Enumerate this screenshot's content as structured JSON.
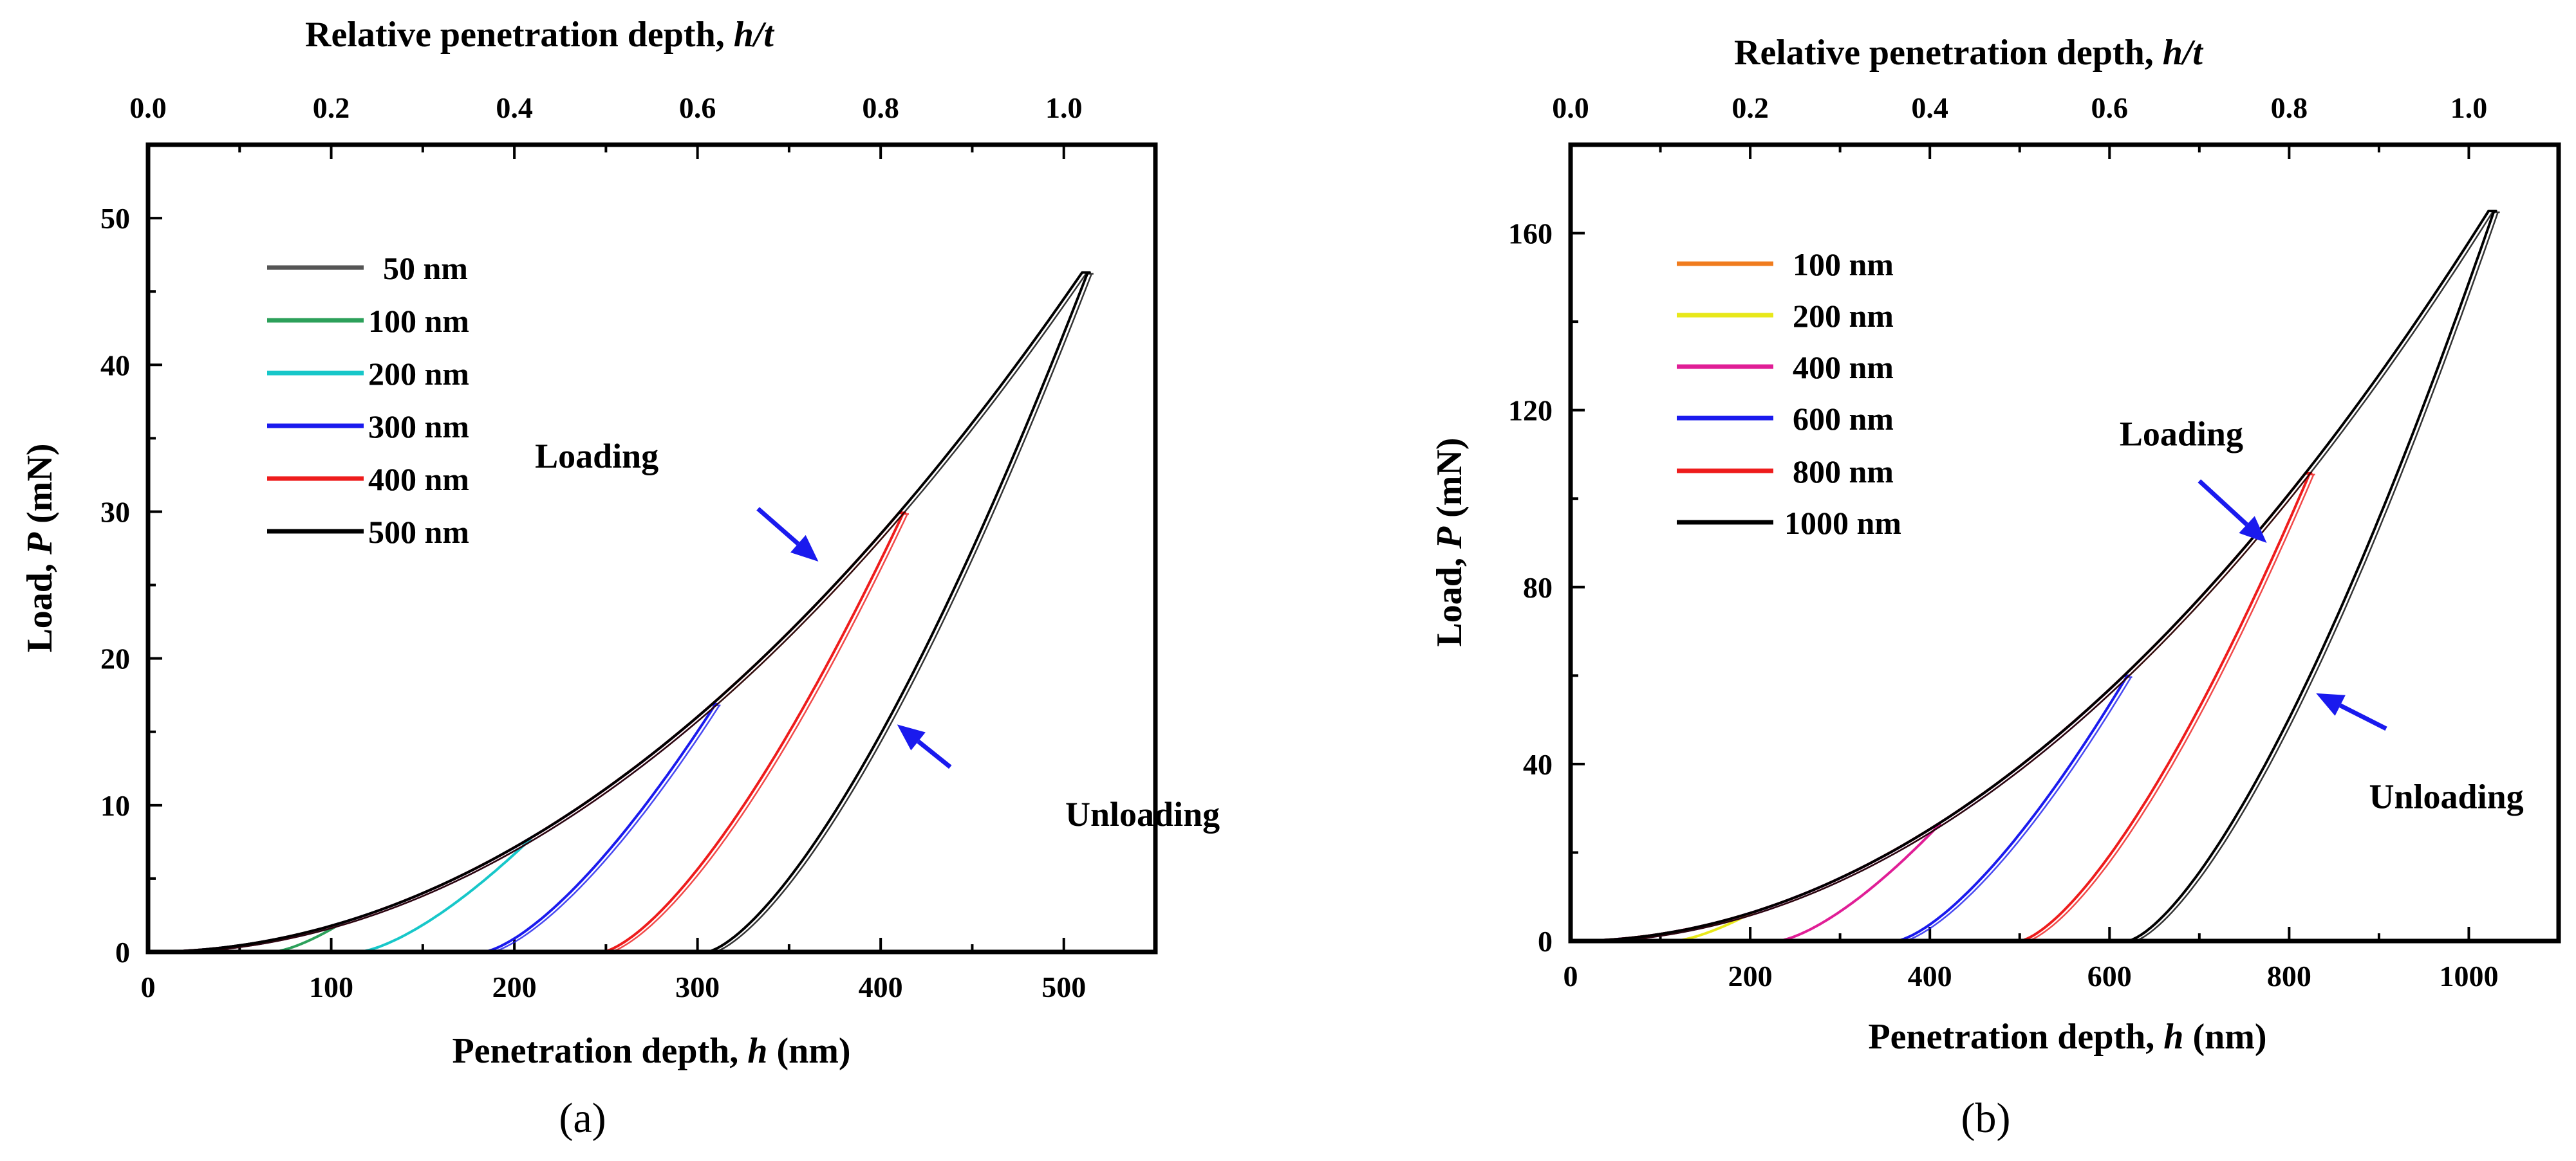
{
  "figure": {
    "panel_labels": [
      "(a)",
      "(b)"
    ]
  },
  "chart_data": [
    {
      "type": "line",
      "panel": "(a)",
      "xlabel_prefix": "Penetration depth, ",
      "xlabel_var": "h",
      "xlabel_unit": " (nm)",
      "ylabel_prefix": "Load, ",
      "ylabel_var": "P",
      "ylabel_unit": " (mN)",
      "top_xlabel_prefix": "Relative penetration depth, ",
      "top_xlabel_var": "h/t",
      "xlim": [
        0,
        550
      ],
      "ylim": [
        0,
        55
      ],
      "xticks": [
        0,
        100,
        200,
        300,
        400,
        500
      ],
      "yticks": [
        0,
        10,
        20,
        30,
        40,
        50
      ],
      "top_xlim": [
        0,
        1.1
      ],
      "top_xticks": [
        0.0,
        0.2,
        0.4,
        0.6,
        0.8,
        1.0
      ],
      "top_xticklabels": [
        "0.0",
        "0.2",
        "0.4",
        "0.6",
        "0.8",
        "1.0"
      ],
      "loading_coefficient": 0.000178,
      "series": [
        {
          "name": "50 nm",
          "color": "#555555",
          "hmax": 50,
          "h_residual": 30
        },
        {
          "name": "100 nm",
          "color": "#2ca05a",
          "hmax": 105,
          "h_residual": 68
        },
        {
          "name": "200 nm",
          "color": "#17c7c9",
          "hmax": 207,
          "h_residual": 115
        },
        {
          "name": "300 nm",
          "color": "#1a1aee",
          "hmax": 308,
          "h_residual": 183
        },
        {
          "name": "400 nm",
          "color": "#ee1c1c",
          "hmax": 410,
          "h_residual": 248
        },
        {
          "name": "500 nm",
          "color": "#000000",
          "hmax": 510,
          "h_residual": 305
        }
      ],
      "annotations": [
        {
          "text": "Loading",
          "x": 245,
          "y": 33,
          "arrow_from": [
            333,
            30.2
          ],
          "arrow_to": [
            366,
            26.6
          ]
        },
        {
          "text": "Unloading",
          "x": 543,
          "y": 8.6,
          "arrow_from": [
            438,
            12.6
          ],
          "arrow_to": [
            409,
            15.5
          ]
        }
      ],
      "legend_position": "top-left"
    },
    {
      "type": "line",
      "panel": "(b)",
      "xlabel_prefix": "Penetration depth, ",
      "xlabel_var": "h",
      "xlabel_unit": " (nm)",
      "ylabel_prefix": "Load, ",
      "ylabel_var": "P",
      "ylabel_unit": " (mN)",
      "top_xlabel_prefix": "Relative penetration depth, ",
      "top_xlabel_var": "h/t",
      "xlim": [
        0,
        1100
      ],
      "ylim": [
        0,
        180
      ],
      "xticks": [
        0,
        200,
        400,
        600,
        800,
        1000
      ],
      "yticks": [
        0,
        40,
        80,
        120,
        160
      ],
      "top_xlim": [
        0,
        1.1
      ],
      "top_xticks": [
        0.0,
        0.2,
        0.4,
        0.6,
        0.8,
        1.0
      ],
      "top_xticklabels": [
        "0.0",
        "0.2",
        "0.4",
        "0.6",
        "0.8",
        "1.0"
      ],
      "loading_coefficient": 0.000158,
      "series": [
        {
          "name": "100 nm",
          "color": "#f07c1e",
          "hmax": 100,
          "h_residual": 58
        },
        {
          "name": "200 nm",
          "color": "#e8e81a",
          "hmax": 200,
          "h_residual": 115
        },
        {
          "name": "400 nm",
          "color": "#e01e96",
          "hmax": 408,
          "h_residual": 230
        },
        {
          "name": "600 nm",
          "color": "#1a1aee",
          "hmax": 616,
          "h_residual": 362
        },
        {
          "name": "800 nm",
          "color": "#ee1c1c",
          "hmax": 818,
          "h_residual": 500
        },
        {
          "name": "1000 nm",
          "color": "#000000",
          "hmax": 1022,
          "h_residual": 620
        }
      ],
      "annotations": [
        {
          "text": "Loading",
          "x": 680,
          "y": 112,
          "arrow_from": [
            700,
            104
          ],
          "arrow_to": [
            775,
            90
          ]
        },
        {
          "text": "Unloading",
          "x": 975,
          "y": 30,
          "arrow_from": [
            908,
            48
          ],
          "arrow_to": [
            830,
            56
          ]
        }
      ],
      "legend_position": "top-left"
    }
  ]
}
